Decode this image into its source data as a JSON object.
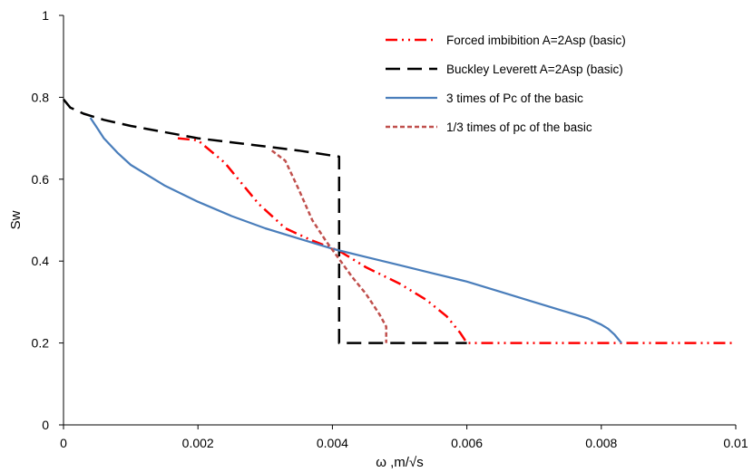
{
  "chart_data": {
    "type": "line",
    "title": "",
    "xlabel": "ω ,m/√s",
    "ylabel": "Sw",
    "xlim": [
      0,
      0.01
    ],
    "ylim": [
      0,
      1
    ],
    "x_ticks": [
      "0",
      "0.002",
      "0.004",
      "0.006",
      "0.008",
      "0.01"
    ],
    "y_ticks": [
      "0",
      "0.2",
      "0.4",
      "0.6",
      "0.8",
      "1"
    ],
    "grid": false,
    "legend_position": "top-right",
    "series": [
      {
        "name": "Forced imbibition A=2Asp (basic)",
        "color": "#ff0000",
        "style": "dash-dot-dot",
        "points": [
          [
            0.0017,
            0.7
          ],
          [
            0.002,
            0.695
          ],
          [
            0.0024,
            0.64
          ],
          [
            0.0029,
            0.54
          ],
          [
            0.0033,
            0.48
          ],
          [
            0.0037,
            0.45
          ],
          [
            0.0041,
            0.425
          ],
          [
            0.0045,
            0.385
          ],
          [
            0.005,
            0.345
          ],
          [
            0.0054,
            0.305
          ],
          [
            0.0057,
            0.265
          ],
          [
            0.0059,
            0.225
          ],
          [
            0.006,
            0.2
          ],
          [
            0.007,
            0.2
          ],
          [
            0.008,
            0.2
          ],
          [
            0.009,
            0.2
          ],
          [
            0.01,
            0.2
          ]
        ]
      },
      {
        "name": "Buckley Leverett A=2Asp (basic)",
        "color": "#000000",
        "style": "long-dash",
        "points": [
          [
            0.0,
            0.795
          ],
          [
            0.0001,
            0.775
          ],
          [
            0.0003,
            0.76
          ],
          [
            0.0006,
            0.745
          ],
          [
            0.001,
            0.73
          ],
          [
            0.0015,
            0.715
          ],
          [
            0.002,
            0.7
          ],
          [
            0.0025,
            0.69
          ],
          [
            0.003,
            0.68
          ],
          [
            0.0035,
            0.67
          ],
          [
            0.0041,
            0.655
          ],
          [
            0.0041,
            0.2
          ],
          [
            0.006,
            0.2
          ]
        ]
      },
      {
        "name": "3 times of Pc of the basic",
        "color": "#4a7ebb",
        "style": "solid",
        "points": [
          [
            0.0004,
            0.75
          ],
          [
            0.0005,
            0.725
          ],
          [
            0.0006,
            0.7
          ],
          [
            0.0008,
            0.665
          ],
          [
            0.001,
            0.635
          ],
          [
            0.0015,
            0.585
          ],
          [
            0.002,
            0.545
          ],
          [
            0.0025,
            0.51
          ],
          [
            0.003,
            0.48
          ],
          [
            0.0035,
            0.455
          ],
          [
            0.004,
            0.43
          ],
          [
            0.0045,
            0.41
          ],
          [
            0.005,
            0.39
          ],
          [
            0.0055,
            0.37
          ],
          [
            0.006,
            0.35
          ],
          [
            0.0065,
            0.325
          ],
          [
            0.007,
            0.3
          ],
          [
            0.0075,
            0.275
          ],
          [
            0.0078,
            0.26
          ],
          [
            0.008,
            0.245
          ],
          [
            0.0081,
            0.235
          ],
          [
            0.0082,
            0.22
          ],
          [
            0.0083,
            0.2
          ]
        ]
      },
      {
        "name": "1/3 times of pc of the basic",
        "color": "#c0504d",
        "style": "short-dash",
        "points": [
          [
            0.0031,
            0.67
          ],
          [
            0.0033,
            0.645
          ],
          [
            0.0035,
            0.575
          ],
          [
            0.0037,
            0.5
          ],
          [
            0.0039,
            0.45
          ],
          [
            0.0041,
            0.405
          ],
          [
            0.0043,
            0.36
          ],
          [
            0.0045,
            0.32
          ],
          [
            0.0047,
            0.27
          ],
          [
            0.0048,
            0.24
          ],
          [
            0.0048,
            0.2
          ]
        ]
      }
    ]
  }
}
